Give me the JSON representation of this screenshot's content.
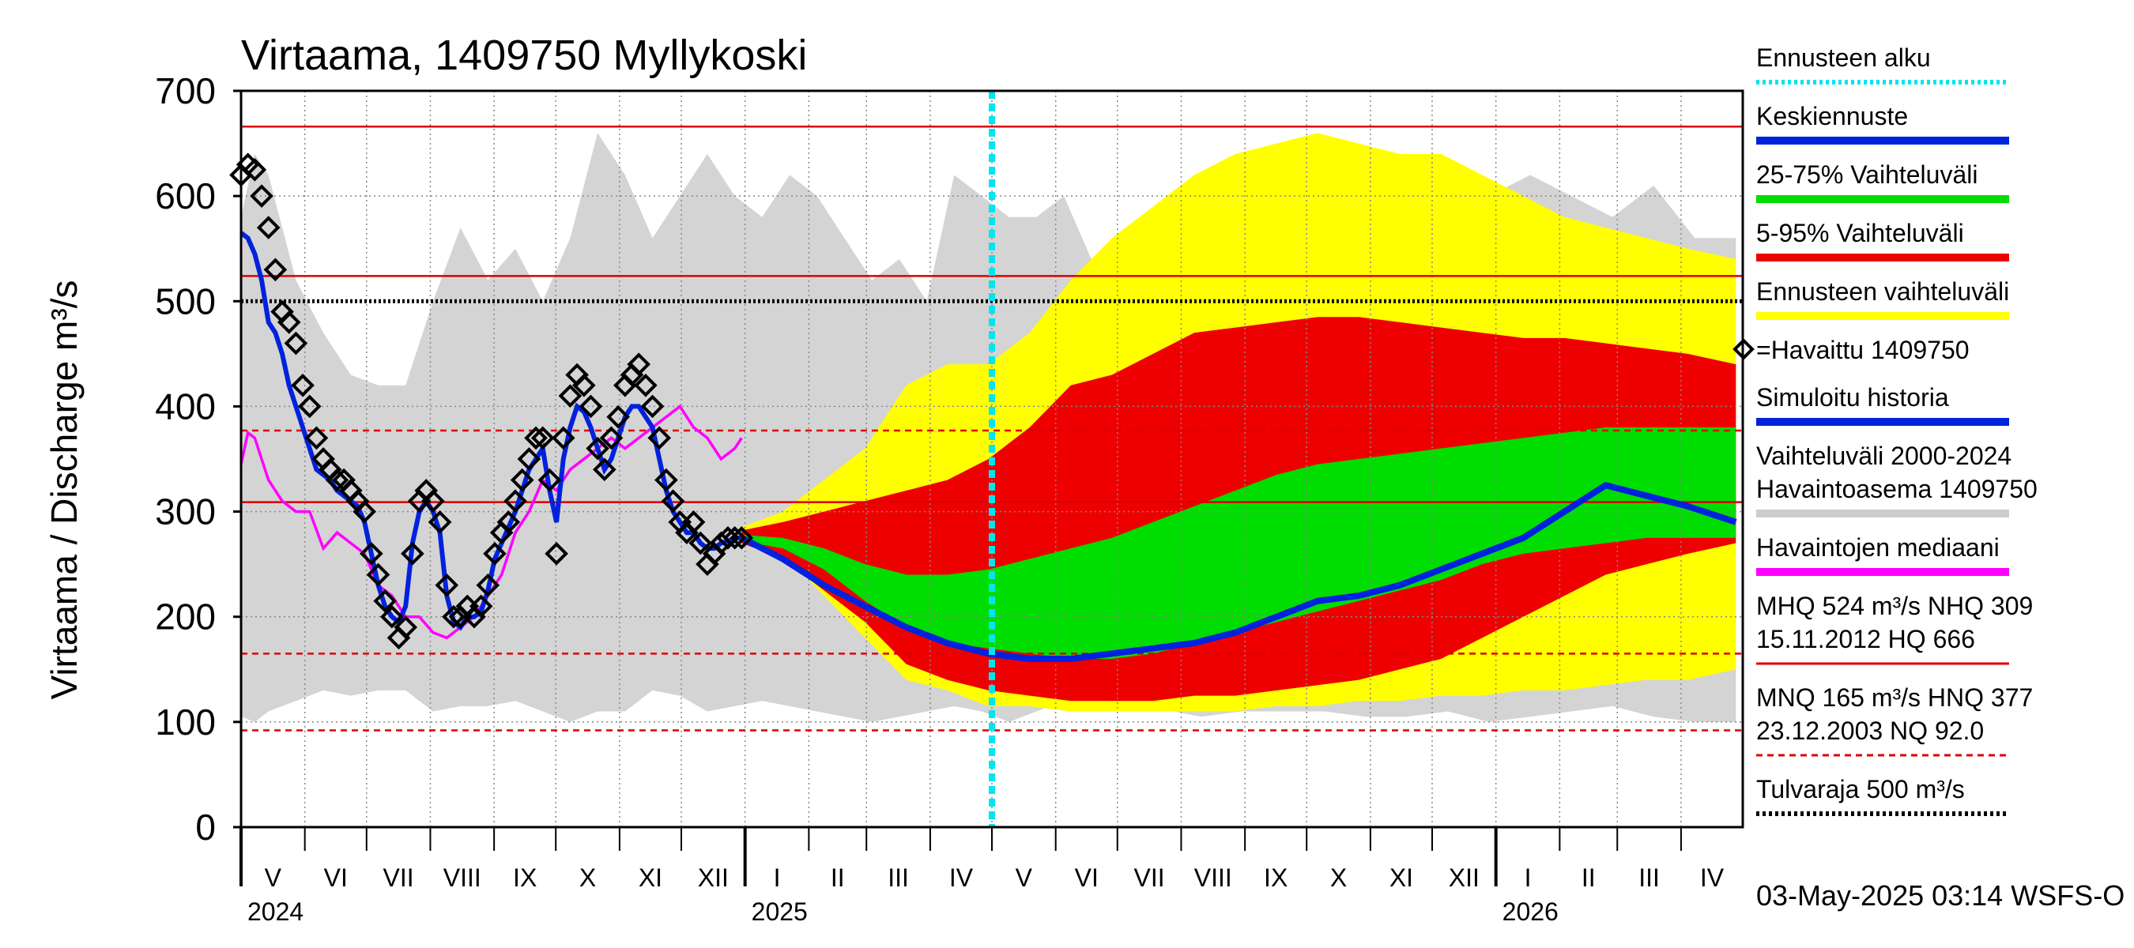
{
  "chart_data": {
    "type": "area",
    "title": "Virtaama, 1409750 Myllykoski",
    "ylabel": "Virtaama / Discharge   m³/s",
    "ylim": [
      0,
      700
    ],
    "y_ticks": [
      0,
      100,
      200,
      300,
      400,
      500,
      600,
      700
    ],
    "x_range_days": [
      0,
      365
    ],
    "months": [
      "V",
      "VI",
      "VII",
      "VIII",
      "IX",
      "X",
      "XI",
      "XII",
      "I",
      "II",
      "III",
      "IV",
      "V",
      "VI",
      "VII",
      "VIII",
      "IX",
      "X",
      "XI",
      "XII",
      "I",
      "II",
      "III",
      "IV"
    ],
    "month_lengths": [
      31,
      30,
      31,
      31,
      30,
      31,
      30,
      31,
      31,
      28,
      31,
      30,
      31,
      30,
      31,
      31,
      30,
      31,
      30,
      31,
      31,
      28,
      31,
      30
    ],
    "years": [
      {
        "label": "2024",
        "month_index": 0
      },
      {
        "label": "2025",
        "month_index": 8
      },
      {
        "label": "2026",
        "month_index": 20
      }
    ],
    "forecast_start_month_index": 12,
    "reference_lines": [
      {
        "name": "HQ",
        "value": 666,
        "color": "#dd0000",
        "style": "solid"
      },
      {
        "name": "MHQ",
        "value": 524,
        "color": "#dd0000",
        "style": "solid"
      },
      {
        "name": "Tulvaraja",
        "value": 500,
        "color": "#000000",
        "style": "dotted"
      },
      {
        "name": "HNQ",
        "value": 377,
        "color": "#dd0000",
        "style": "dashed"
      },
      {
        "name": "NHQ",
        "value": 309,
        "color": "#dd0000",
        "style": "solid"
      },
      {
        "name": "MNQ",
        "value": 165,
        "color": "#dd0000",
        "style": "dashed"
      },
      {
        "name": "NQ",
        "value": 92,
        "color": "#dd0000",
        "style": "dashed"
      }
    ],
    "history_band_2000_2024": {
      "x": [
        0,
        10,
        20,
        40,
        60,
        80,
        100,
        120,
        140,
        160,
        180,
        200,
        220,
        240,
        260,
        280,
        300,
        320,
        340,
        360,
        380,
        400,
        420,
        440,
        460,
        480,
        500,
        520,
        540,
        560,
        580,
        600,
        620,
        640,
        660,
        680,
        700,
        730,
        760,
        790,
        820,
        850,
        880,
        910,
        940,
        970,
        1000,
        1030,
        1060,
        1090
      ],
      "lower": [
        105,
        100,
        110,
        120,
        130,
        125,
        130,
        130,
        110,
        115,
        115,
        120,
        110,
        100,
        110,
        110,
        130,
        125,
        110,
        115,
        120,
        115,
        110,
        105,
        100,
        105,
        110,
        115,
        110,
        100,
        110,
        120,
        115,
        110,
        110,
        110,
        105,
        110,
        110,
        110,
        105,
        105,
        110,
        100,
        105,
        110,
        115,
        105,
        100,
        100
      ],
      "upper": [
        580,
        640,
        620,
        520,
        470,
        430,
        420,
        420,
        500,
        570,
        520,
        550,
        500,
        560,
        660,
        620,
        560,
        600,
        640,
        600,
        580,
        620,
        600,
        560,
        520,
        540,
        500,
        620,
        600,
        580,
        580,
        600,
        540,
        480,
        460,
        460,
        520,
        560,
        520,
        490,
        460,
        520,
        470,
        600,
        620,
        600,
        580,
        610,
        560,
        560
      ]
    },
    "forecast": {
      "x": [
        365,
        395,
        425,
        455,
        485,
        515,
        545,
        575,
        605,
        635,
        665,
        695,
        725,
        755,
        785,
        815,
        845,
        875,
        905,
        935,
        965,
        995,
        1025,
        1055,
        1090
      ],
      "band_min": [
        275,
        260,
        220,
        180,
        140,
        130,
        115,
        115,
        110,
        110,
        110,
        110,
        110,
        115,
        115,
        120,
        120,
        125,
        125,
        130,
        130,
        135,
        140,
        140,
        150
      ],
      "band_max": [
        285,
        300,
        330,
        360,
        420,
        440,
        440,
        470,
        520,
        560,
        590,
        620,
        640,
        650,
        660,
        650,
        640,
        640,
        620,
        600,
        580,
        570,
        560,
        550,
        540
      ],
      "p05": [
        270,
        255,
        225,
        195,
        155,
        140,
        130,
        125,
        120,
        120,
        120,
        125,
        125,
        130,
        135,
        140,
        150,
        160,
        180,
        200,
        220,
        240,
        250,
        260,
        270
      ],
      "p25": [
        272,
        265,
        245,
        215,
        190,
        175,
        170,
        165,
        160,
        160,
        165,
        175,
        185,
        195,
        205,
        215,
        225,
        235,
        250,
        260,
        265,
        270,
        275,
        275,
        275
      ],
      "p75": [
        278,
        275,
        265,
        250,
        240,
        240,
        245,
        255,
        265,
        275,
        290,
        305,
        320,
        335,
        345,
        350,
        355,
        360,
        365,
        370,
        375,
        380,
        380,
        380,
        380
      ],
      "p95": [
        282,
        290,
        300,
        310,
        320,
        330,
        350,
        380,
        420,
        430,
        450,
        470,
        475,
        480,
        485,
        485,
        480,
        475,
        470,
        465,
        465,
        460,
        455,
        450,
        440
      ],
      "median": [
        275,
        255,
        230,
        210,
        190,
        175,
        165,
        160,
        160,
        165,
        170,
        175,
        185,
        200,
        215,
        220,
        230,
        245,
        260,
        275,
        300,
        325,
        315,
        305,
        290
      ]
    },
    "observed": {
      "x": [
        0,
        5,
        10,
        15,
        20,
        25,
        30,
        35,
        40,
        45,
        50,
        55,
        60,
        65,
        70,
        75,
        80,
        85,
        90,
        95,
        100,
        105,
        110,
        115,
        120,
        125,
        130,
        135,
        140,
        145,
        150,
        155,
        160,
        165,
        170,
        175,
        180,
        185,
        190,
        195,
        200,
        205,
        210,
        215,
        220,
        225,
        230,
        235,
        240,
        245,
        250,
        255,
        260,
        265,
        270,
        275,
        280,
        285,
        290,
        295,
        300,
        305,
        310,
        315,
        320,
        325,
        330,
        335,
        340,
        345,
        350,
        355,
        360,
        365
      ],
      "y": [
        620,
        630,
        625,
        600,
        570,
        530,
        490,
        480,
        460,
        420,
        400,
        370,
        350,
        340,
        330,
        330,
        320,
        310,
        300,
        260,
        240,
        215,
        200,
        180,
        190,
        260,
        310,
        320,
        310,
        290,
        230,
        200,
        200,
        210,
        200,
        210,
        230,
        260,
        280,
        290,
        310,
        330,
        350,
        370,
        370,
        330,
        260,
        370,
        410,
        430,
        420,
        400,
        360,
        340,
        370,
        390,
        420,
        430,
        440,
        420,
        400,
        370,
        330,
        310,
        290,
        280,
        290,
        270,
        250,
        260,
        270,
        275,
        275,
        275
      ]
    },
    "simulated": {
      "x": [
        0,
        5,
        10,
        15,
        20,
        25,
        30,
        35,
        40,
        45,
        50,
        55,
        60,
        65,
        70,
        75,
        80,
        85,
        90,
        95,
        100,
        105,
        110,
        115,
        120,
        125,
        130,
        135,
        140,
        145,
        150,
        155,
        160,
        165,
        170,
        175,
        180,
        185,
        190,
        195,
        200,
        205,
        210,
        215,
        220,
        225,
        230,
        235,
        240,
        245,
        250,
        255,
        260,
        265,
        270,
        275,
        280,
        285,
        290,
        295,
        300,
        305,
        310,
        315,
        320,
        325,
        330,
        335,
        340,
        345,
        350,
        355,
        360,
        365
      ],
      "y": [
        565,
        560,
        545,
        520,
        480,
        470,
        450,
        420,
        400,
        380,
        360,
        340,
        335,
        330,
        320,
        315,
        310,
        305,
        290,
        260,
        230,
        210,
        200,
        195,
        210,
        270,
        300,
        310,
        300,
        280,
        220,
        195,
        190,
        200,
        200,
        205,
        225,
        255,
        270,
        285,
        300,
        320,
        340,
        350,
        360,
        320,
        290,
        350,
        380,
        400,
        395,
        380,
        360,
        340,
        350,
        370,
        390,
        400,
        400,
        390,
        380,
        350,
        320,
        300,
        290,
        280,
        280,
        270,
        265,
        265,
        270,
        272,
        275,
        275
      ]
    },
    "observed_median": {
      "x": [
        0,
        5,
        10,
        20,
        30,
        40,
        50,
        60,
        70,
        80,
        90,
        100,
        110,
        120,
        130,
        140,
        150,
        160,
        170,
        180,
        190,
        200,
        210,
        220,
        230,
        240,
        250,
        260,
        270,
        280,
        290,
        300,
        310,
        320,
        330,
        340,
        350,
        360,
        365
      ],
      "y": [
        345,
        375,
        370,
        330,
        310,
        300,
        300,
        265,
        280,
        270,
        260,
        230,
        220,
        200,
        200,
        185,
        180,
        190,
        200,
        220,
        240,
        280,
        300,
        330,
        320,
        340,
        350,
        360,
        370,
        360,
        370,
        380,
        390,
        400,
        380,
        370,
        350,
        360,
        370
      ]
    },
    "legend": [
      {
        "label": "Ennusteen alku",
        "color": "#00e5ee",
        "style": "dotted"
      },
      {
        "label": "Keskiennuste",
        "color": "#0022dd",
        "style": "solid"
      },
      {
        "label": "25-75% Vaihteluväli",
        "color": "#00dd00",
        "style": "solid"
      },
      {
        "label": "5-95% Vaihteluväli",
        "color": "#ee0000",
        "style": "solid"
      },
      {
        "label": "Ennusteen vaihteluväli",
        "color": "#ffff00",
        "style": "solid"
      },
      {
        "label": "=Havaittu 1409750",
        "color": "#000000",
        "style": "marker"
      },
      {
        "label": "Simuloitu historia",
        "color": "#0022dd",
        "style": "solid"
      },
      {
        "label": "Vaihteluväli 2000-2024\n Havaintoasema 1409750",
        "color": "#cccccc",
        "style": "solid"
      },
      {
        "label": "Havaintojen mediaani",
        "color": "#ff00ff",
        "style": "solid"
      },
      {
        "label": "MHQ  524 m³/s NHQ  309\n15.11.2012 HQ  666",
        "color": "#dd0000",
        "style": "solid"
      },
      {
        "label": "MNQ  165 m³/s HNQ  377\n23.12.2003 NQ 92.0",
        "color": "#dd0000",
        "style": "dashed"
      },
      {
        "label": "Tulvaraja 500 m³/s",
        "color": "#000000",
        "style": "dotted"
      }
    ],
    "footer": "03-May-2025 03:14 WSFS-O"
  }
}
